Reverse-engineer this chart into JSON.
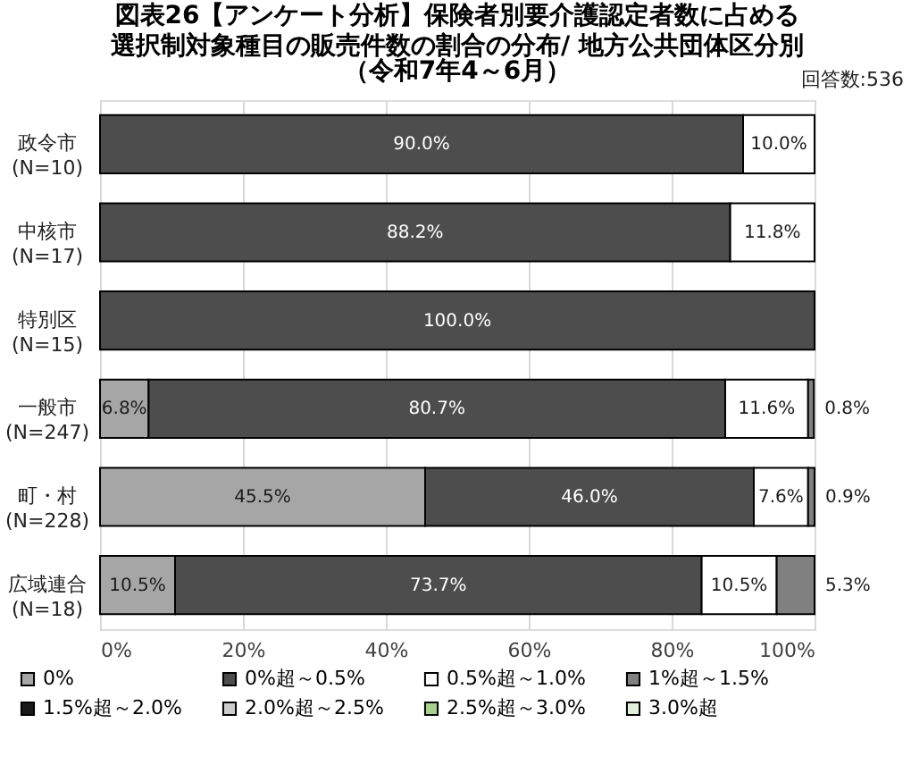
{
  "chart_data": {
    "type": "bar",
    "orientation": "horizontal",
    "stacked": true,
    "title": "図表26【アンケート分析】保険者別要介護認定者数に占める選択制対象種目の販売件数の割合の分布/ 地方公共団体区分別",
    "subtitle": "（令和7年4～6月）",
    "annotations": [
      "回答数:536"
    ],
    "categories": [
      "政令市\n(N=10)",
      "中核市\n(N=17)",
      "特別区\n(N=15)",
      "一般市\n(N=247)",
      "町・村\n(N=228)",
      "広域連合\n(N=18)"
    ],
    "xlim": [
      0,
      100
    ],
    "xticks": [
      {
        "value": 0,
        "label": "0%"
      },
      {
        "value": 20,
        "label": "20%"
      },
      {
        "value": 40,
        "label": "40%"
      },
      {
        "value": 60,
        "label": "60%"
      },
      {
        "value": 80,
        "label": "80%"
      },
      {
        "value": 100,
        "label": "100%"
      }
    ],
    "grid": "x",
    "legend": "bottom",
    "series": [
      {
        "name": "0%",
        "color": "#a6a6a6",
        "values": [
          0,
          0,
          0,
          6.8,
          45.5,
          10.5
        ],
        "value_labels": [
          null,
          null,
          null,
          "6.8%",
          "45.5%",
          "10.5%"
        ]
      },
      {
        "name": "0%超～0.5%",
        "color": "#4d4d4d",
        "values": [
          90.0,
          88.2,
          100.0,
          80.7,
          46.0,
          73.7
        ],
        "value_labels": [
          "90.0%",
          "88.2%",
          "100.0%",
          "80.7%",
          "46.0%",
          "73.7%"
        ]
      },
      {
        "name": "0.5%超～1.0%",
        "color": "#ffffff",
        "values": [
          10.0,
          11.8,
          0,
          11.6,
          7.6,
          10.5
        ],
        "value_labels": [
          "10.0%",
          "11.8%",
          null,
          "11.6%",
          "7.6%",
          "10.5%"
        ]
      },
      {
        "name": "1%超～1.5%",
        "color": "#808080",
        "values": [
          0,
          0,
          0,
          0.8,
          0.9,
          5.3
        ],
        "value_labels": [
          null,
          null,
          null,
          "0.8%",
          "0.9%",
          "5.3%"
        ]
      },
      {
        "name": "1.5%超～2.0%",
        "color": "#1a1a1a",
        "values": [
          0,
          0,
          0,
          0,
          0,
          0
        ]
      },
      {
        "name": "2.0%超～2.5%",
        "color": "#cccccc",
        "values": [
          0,
          0,
          0,
          0,
          0,
          0
        ]
      },
      {
        "name": "2.5%超～3.0%",
        "color": "#a9d18e",
        "values": [
          0,
          0,
          0,
          0,
          0,
          0
        ]
      },
      {
        "name": "3.0%超",
        "color": "#e2efda",
        "values": [
          0,
          0,
          0,
          0,
          0,
          0
        ]
      }
    ]
  }
}
